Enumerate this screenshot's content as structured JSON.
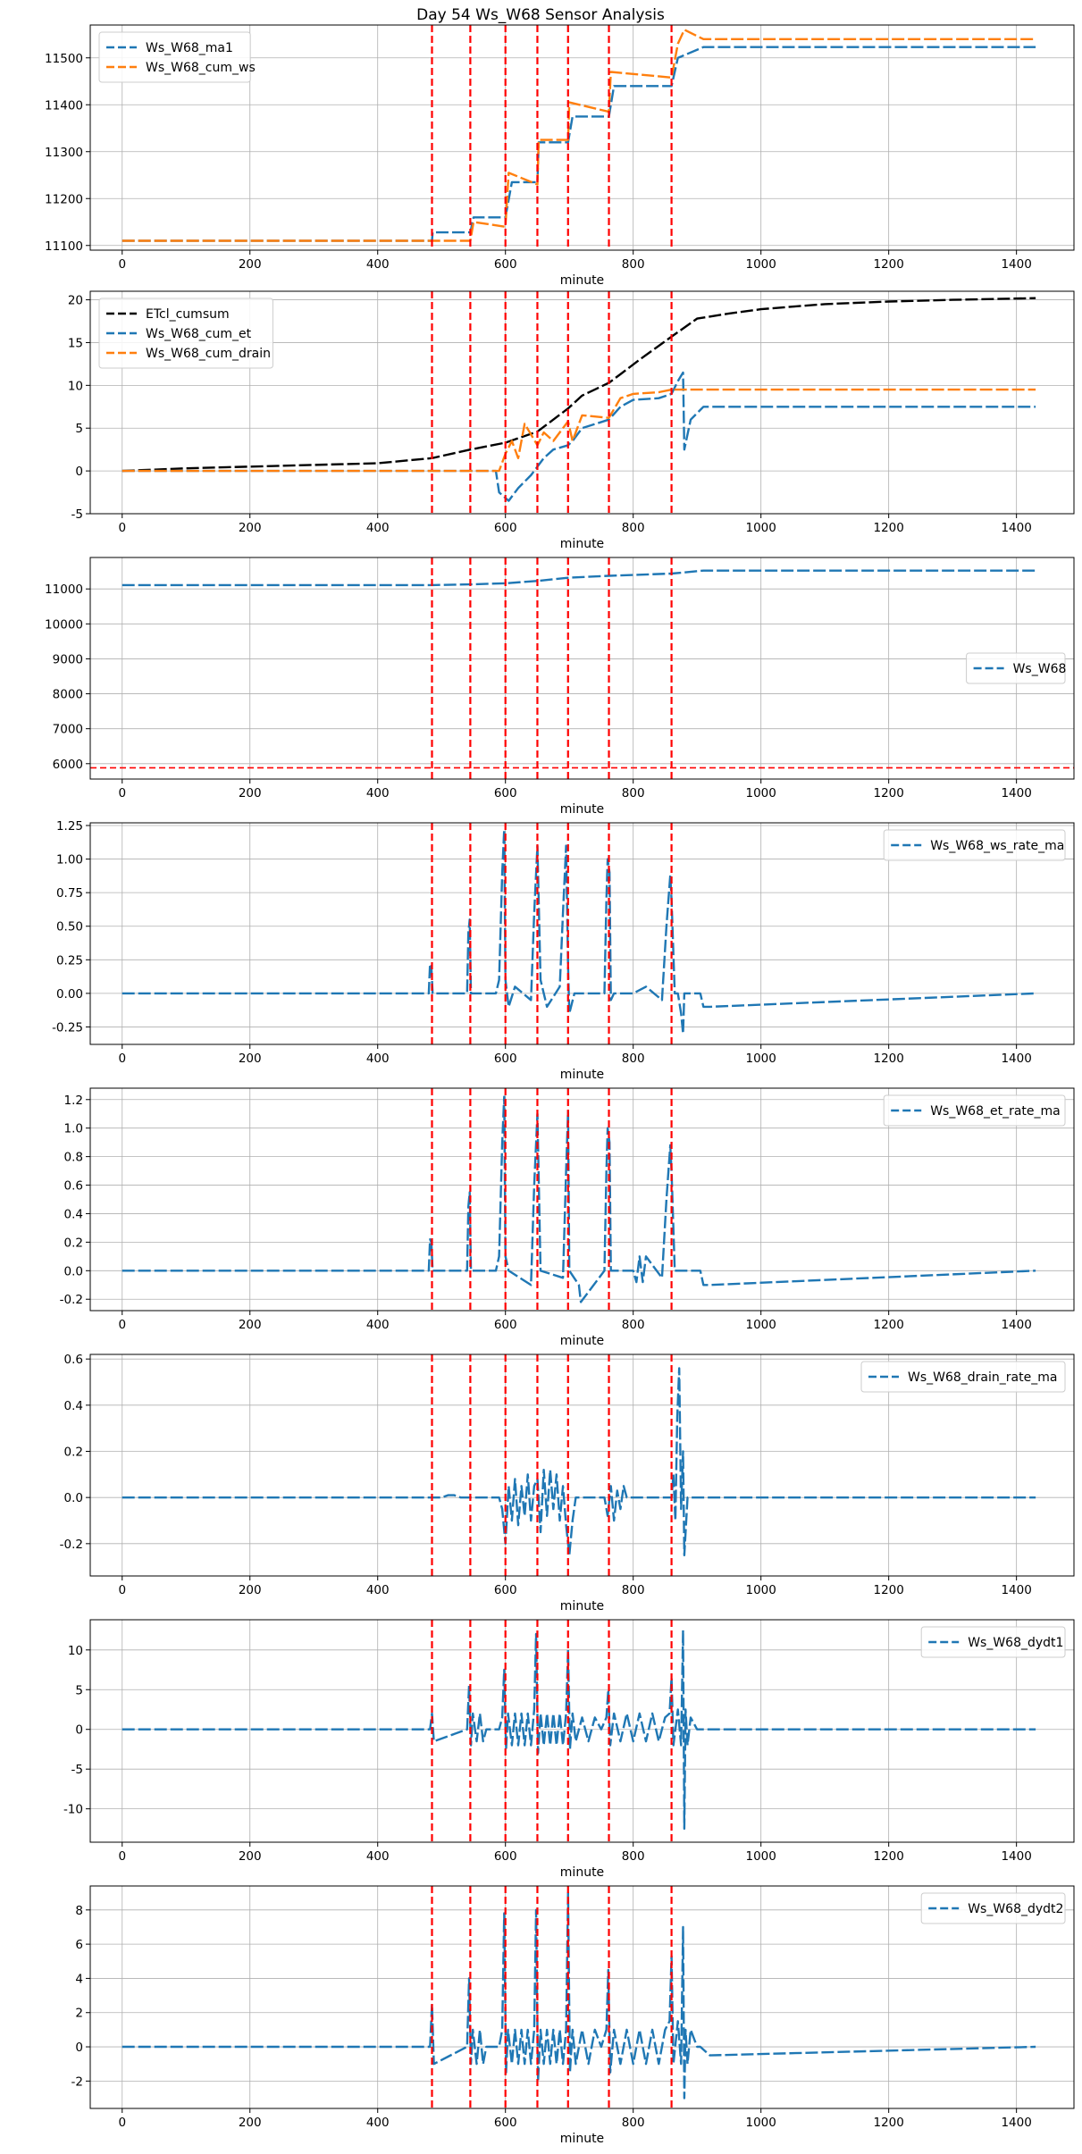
{
  "figure_title": "Day 54 Ws_W68 Sensor Analysis",
  "colors": {
    "blue": "#1f77b4",
    "orange": "#ff7f0e",
    "black": "#000000",
    "red": "#ff0000",
    "grid": "#b0b0b0"
  },
  "vlines": [
    485,
    545,
    600,
    650,
    698,
    762,
    860
  ],
  "chart_data": [
    {
      "type": "line",
      "xlabel": "minute",
      "xlim": [
        -50,
        1490
      ],
      "ylim": [
        11090,
        11570
      ],
      "yticks": [
        11100,
        11200,
        11300,
        11400,
        11500
      ],
      "ytick_labels": [
        "11100",
        "11200",
        "11300",
        "11400",
        "11500"
      ],
      "grid": true,
      "legend_position": "upper-left",
      "series": [
        {
          "name": "Ws_W68_ma1",
          "color": "#1f77b4",
          "style": "dashed",
          "x": [
            0,
            485,
            486,
            545,
            550,
            600,
            610,
            650,
            652,
            698,
            705,
            762,
            770,
            860,
            870,
            910,
            1430
          ],
          "y": [
            11110,
            11110,
            11128,
            11128,
            11160,
            11160,
            11235,
            11235,
            11320,
            11320,
            11375,
            11375,
            11440,
            11440,
            11500,
            11523,
            11523
          ]
        },
        {
          "name": "Ws_W68_cum_ws",
          "color": "#ff7f0e",
          "style": "dashed",
          "x": [
            0,
            485,
            545,
            550,
            600,
            605,
            650,
            652,
            698,
            700,
            762,
            765,
            860,
            870,
            880,
            910,
            1430
          ],
          "y": [
            11110,
            11110,
            11110,
            11150,
            11140,
            11255,
            11230,
            11325,
            11325,
            11405,
            11385,
            11470,
            11458,
            11530,
            11560,
            11540,
            11540
          ]
        }
      ]
    },
    {
      "type": "line",
      "xlabel": "minute",
      "xlim": [
        -50,
        1490
      ],
      "ylim": [
        -5,
        21
      ],
      "yticks": [
        -5,
        0,
        5,
        10,
        15,
        20
      ],
      "ytick_labels": [
        "-5",
        "0",
        "5",
        "10",
        "15",
        "20"
      ],
      "grid": true,
      "legend_position": "upper-left",
      "series": [
        {
          "name": "ETcl_cumsum",
          "color": "#000000",
          "style": "dashed",
          "x": [
            0,
            100,
            200,
            300,
            400,
            485,
            545,
            600,
            650,
            698,
            720,
            762,
            780,
            810,
            860,
            900,
            950,
            1000,
            1050,
            1100,
            1200,
            1300,
            1430
          ],
          "y": [
            0,
            0.3,
            0.5,
            0.7,
            0.9,
            1.5,
            2.5,
            3.3,
            4.6,
            7.3,
            8.8,
            10.3,
            11.3,
            13.0,
            15.7,
            17.8,
            18.4,
            18.9,
            19.2,
            19.5,
            19.8,
            20.0,
            20.2
          ]
        },
        {
          "name": "Ws_W68_cum_et",
          "color": "#1f77b4",
          "style": "dashed",
          "x": [
            0,
            485,
            545,
            585,
            590,
            605,
            620,
            640,
            650,
            660,
            675,
            698,
            705,
            720,
            762,
            780,
            800,
            840,
            860,
            870,
            878,
            880,
            890,
            910,
            1430
          ],
          "y": [
            0,
            0,
            0,
            0,
            -2.5,
            -3.5,
            -2.0,
            -0.5,
            0.5,
            1.5,
            2.5,
            3.0,
            3.5,
            5.0,
            6.0,
            7.5,
            8.3,
            8.5,
            9.0,
            10.5,
            11.5,
            2.5,
            6.0,
            7.5,
            7.5
          ]
        },
        {
          "name": "Ws_W68_cum_drain",
          "color": "#ff7f0e",
          "style": "dashed",
          "x": [
            0,
            485,
            545,
            590,
            600,
            610,
            620,
            630,
            650,
            660,
            675,
            698,
            705,
            720,
            762,
            780,
            800,
            840,
            860,
            870,
            900,
            1430
          ],
          "y": [
            0,
            0,
            0,
            0,
            2.0,
            3.5,
            1.5,
            5.5,
            3.0,
            4.5,
            3.5,
            5.8,
            3.5,
            6.5,
            6.2,
            8.5,
            9.0,
            9.2,
            9.5,
            9.5,
            9.5,
            9.5
          ]
        }
      ]
    },
    {
      "type": "line",
      "xlabel": "minute",
      "xlim": [
        -50,
        1490
      ],
      "ylim": [
        5560,
        11900
      ],
      "yticks": [
        6000,
        7000,
        8000,
        9000,
        10000,
        11000
      ],
      "ytick_labels": [
        "6000",
        "7000",
        "8000",
        "9000",
        "10000",
        "11000"
      ],
      "grid": true,
      "legend_position": "center-right",
      "hline": 5880,
      "series": [
        {
          "name": "Ws_W68",
          "color": "#1f77b4",
          "style": "dashed",
          "x": [
            0,
            485,
            545,
            600,
            650,
            698,
            762,
            860,
            910,
            1430
          ],
          "y": [
            11110,
            11110,
            11130,
            11160,
            11230,
            11320,
            11375,
            11440,
            11525,
            11525
          ]
        }
      ]
    },
    {
      "type": "line",
      "xlabel": "minute",
      "xlim": [
        -50,
        1490
      ],
      "ylim": [
        -0.38,
        1.27
      ],
      "yticks": [
        -0.25,
        0,
        0.25,
        0.5,
        0.75,
        1.0,
        1.25
      ],
      "ytick_labels": [
        "-0.25",
        "0.00",
        "0.25",
        "0.50",
        "0.75",
        "1.00",
        "1.25"
      ],
      "grid": true,
      "legend_position": "upper-right",
      "series": [
        {
          "name": "Ws_W68_ws_rate_ma",
          "color": "#1f77b4",
          "style": "dashed",
          "x": [
            0,
            480,
            482,
            484,
            486,
            540,
            542,
            544,
            546,
            585,
            590,
            595,
            598,
            600,
            605,
            615,
            640,
            645,
            650,
            655,
            665,
            685,
            690,
            695,
            698,
            700,
            708,
            755,
            758,
            760,
            763,
            765,
            770,
            800,
            820,
            845,
            852,
            858,
            860,
            865,
            870,
            875,
            878,
            880,
            885,
            890,
            905,
            910,
            920,
            1430
          ],
          "y": [
            0,
            0,
            0.22,
            0.2,
            0,
            0,
            0.45,
            0.55,
            0,
            0,
            0.1,
            0.9,
            1.22,
            0.1,
            -0.1,
            0.05,
            -0.05,
            0.6,
            1.1,
            0.1,
            -0.1,
            0.05,
            0.6,
            1.1,
            0.2,
            -0.15,
            0.0,
            0.0,
            0.7,
            1.0,
            0.9,
            -0.05,
            0.0,
            0.0,
            0.05,
            -0.05,
            0.5,
            0.88,
            0.7,
            0.0,
            0.0,
            -0.15,
            -0.3,
            0.0,
            0.0,
            0.0,
            0.0,
            -0.1,
            -0.1,
            0.0
          ]
        }
      ]
    },
    {
      "type": "line",
      "xlabel": "minute",
      "xlim": [
        -50,
        1490
      ],
      "ylim": [
        -0.28,
        1.28
      ],
      "yticks": [
        -0.2,
        0,
        0.2,
        0.4,
        0.6,
        0.8,
        1.0,
        1.2
      ],
      "ytick_labels": [
        "-0.2",
        "0.0",
        "0.2",
        "0.4",
        "0.6",
        "0.8",
        "1.0",
        "1.2"
      ],
      "grid": true,
      "legend_position": "upper-right",
      "series": [
        {
          "name": "Ws_W68_et_rate_ma",
          "color": "#1f77b4",
          "style": "dashed",
          "x": [
            0,
            480,
            482,
            484,
            486,
            540,
            542,
            544,
            546,
            585,
            590,
            595,
            598,
            600,
            605,
            640,
            645,
            650,
            655,
            690,
            695,
            698,
            700,
            715,
            718,
            755,
            758,
            760,
            763,
            765,
            800,
            805,
            810,
            815,
            820,
            845,
            852,
            858,
            860,
            865,
            905,
            910,
            920,
            1430
          ],
          "y": [
            0,
            0,
            0.22,
            0.2,
            0,
            0,
            0.45,
            0.55,
            0,
            0,
            0.1,
            0.9,
            1.22,
            0.1,
            0.0,
            -0.1,
            0.6,
            1.1,
            0.0,
            -0.05,
            0.7,
            1.12,
            0.0,
            -0.1,
            -0.22,
            0.0,
            0.7,
            1.0,
            0.9,
            0.0,
            0.0,
            -0.08,
            0.1,
            -0.08,
            0.1,
            -0.05,
            0.5,
            0.88,
            0.7,
            0.0,
            0.0,
            -0.1,
            -0.1,
            0.0
          ]
        }
      ]
    },
    {
      "type": "line",
      "xlabel": "minute",
      "xlim": [
        -50,
        1490
      ],
      "ylim": [
        -0.34,
        0.62
      ],
      "yticks": [
        -0.2,
        0,
        0.2,
        0.4,
        0.6
      ],
      "ytick_labels": [
        "-0.2",
        "0.0",
        "0.2",
        "0.4",
        "0.6"
      ],
      "grid": true,
      "legend_position": "upper-right",
      "series": [
        {
          "name": "Ws_W68_drain_rate_ma",
          "color": "#1f77b4",
          "style": "dashed",
          "x": [
            0,
            480,
            500,
            510,
            520,
            530,
            540,
            590,
            595,
            600,
            605,
            610,
            615,
            620,
            625,
            630,
            635,
            640,
            645,
            650,
            655,
            660,
            665,
            670,
            675,
            680,
            685,
            690,
            695,
            700,
            705,
            710,
            755,
            760,
            765,
            770,
            775,
            780,
            785,
            790,
            795,
            860,
            863,
            866,
            869,
            872,
            875,
            878,
            880,
            885,
            1430
          ],
          "y": [
            0,
            0,
            0,
            0.01,
            0.01,
            0,
            0,
            0,
            -0.05,
            -0.2,
            0.05,
            -0.1,
            0.08,
            -0.12,
            0.05,
            -0.08,
            0.1,
            -0.1,
            0.05,
            0.08,
            -0.15,
            0.12,
            -0.08,
            0.12,
            -0.05,
            0.1,
            -0.1,
            0.05,
            -0.12,
            -0.25,
            -0.1,
            0.0,
            0.0,
            -0.08,
            0.05,
            -0.1,
            0.03,
            -0.05,
            0.05,
            0.0,
            0.0,
            0.0,
            0.1,
            -0.1,
            0.35,
            0.56,
            -0.05,
            0.2,
            -0.25,
            0.0,
            0.0
          ]
        }
      ]
    },
    {
      "type": "line",
      "xlabel": "minute",
      "xlim": [
        -50,
        1490
      ],
      "ylim": [
        -14.2,
        13.8
      ],
      "yticks": [
        -10,
        -5,
        0,
        5,
        10
      ],
      "ytick_labels": [
        "-10",
        "-5",
        "0",
        "5",
        "10"
      ],
      "grid": true,
      "legend_position": "upper-right",
      "series": [
        {
          "name": "Ws_W68_dydt1",
          "color": "#1f77b4",
          "style": "dashed",
          "x": [
            0,
            482,
            485,
            488,
            540,
            543,
            546,
            549,
            555,
            560,
            565,
            570,
            590,
            595,
            598,
            601,
            604,
            610,
            615,
            620,
            625,
            630,
            635,
            640,
            645,
            648,
            651,
            655,
            660,
            665,
            670,
            675,
            680,
            685,
            690,
            695,
            698,
            701,
            705,
            710,
            720,
            730,
            740,
            750,
            758,
            761,
            764,
            770,
            780,
            790,
            800,
            810,
            820,
            830,
            840,
            850,
            857,
            860,
            863,
            870,
            875,
            878,
            880,
            882,
            885,
            890,
            900,
            905,
            1430
          ],
          "y": [
            0,
            0,
            2.0,
            -1.5,
            0,
            5.5,
            -2.0,
            2.0,
            -1.5,
            2.0,
            -1.5,
            0,
            0,
            1.5,
            7.5,
            -2.5,
            2.0,
            -2.0,
            2.0,
            -2.0,
            2.0,
            -2.0,
            2.0,
            -2.0,
            2.5,
            12.0,
            -3.0,
            2.0,
            -2.0,
            2.0,
            -2.0,
            2.0,
            -2.0,
            2.0,
            -2.0,
            2.0,
            10.0,
            -2.5,
            2.0,
            -1.5,
            1.5,
            -1.5,
            1.5,
            0,
            1.5,
            5.0,
            -2.0,
            2.0,
            -1.5,
            2.0,
            -1.5,
            2.0,
            -1.5,
            2.0,
            -1.5,
            1.5,
            2.0,
            6.5,
            -2.0,
            2.5,
            -2.0,
            12.5,
            -12.5,
            2.5,
            -2.0,
            1.5,
            0,
            0,
            0
          ]
        }
      ]
    },
    {
      "type": "line",
      "xlabel": "minute",
      "xlim": [
        -50,
        1490
      ],
      "ylim": [
        -3.6,
        9.4
      ],
      "yticks": [
        -2,
        0,
        2,
        4,
        6,
        8
      ],
      "ytick_labels": [
        "-2",
        "0",
        "2",
        "4",
        "6",
        "8"
      ],
      "grid": true,
      "legend_position": "upper-right",
      "series": [
        {
          "name": "Ws_W68_dydt2",
          "color": "#1f77b4",
          "style": "dashed",
          "x": [
            0,
            482,
            485,
            488,
            540,
            543,
            546,
            549,
            555,
            560,
            565,
            570,
            590,
            595,
            598,
            601,
            604,
            610,
            615,
            620,
            625,
            630,
            635,
            640,
            645,
            648,
            651,
            655,
            660,
            665,
            670,
            675,
            680,
            685,
            690,
            695,
            698,
            701,
            705,
            710,
            720,
            730,
            740,
            750,
            758,
            761,
            764,
            770,
            780,
            790,
            800,
            810,
            820,
            830,
            840,
            850,
            857,
            860,
            863,
            870,
            875,
            878,
            880,
            882,
            885,
            890,
            900,
            905,
            920,
            1430
          ],
          "y": [
            0,
            0,
            2.5,
            -1.0,
            0,
            4.0,
            -1.0,
            1.0,
            -1.0,
            1.0,
            -1.0,
            0,
            0,
            1.0,
            7.8,
            -1.5,
            1.0,
            -1.0,
            1.0,
            -1.0,
            1.0,
            -1.0,
            1.0,
            -1.0,
            1.0,
            8.0,
            -2.0,
            1.0,
            -1.0,
            1.0,
            -1.0,
            1.0,
            -1.0,
            1.0,
            -1.0,
            1.0,
            9.0,
            -1.5,
            1.0,
            -1.0,
            1.0,
            -1.0,
            1.0,
            0,
            1.0,
            4.5,
            -1.5,
            1.0,
            -1.0,
            1.0,
            -1.0,
            1.0,
            -1.0,
            1.0,
            -1.0,
            1.0,
            1.5,
            5.3,
            -1.0,
            1.5,
            -1.0,
            7.0,
            -3.0,
            1.0,
            -1.0,
            1.0,
            0,
            0,
            -0.5,
            0
          ]
        }
      ]
    }
  ],
  "xticks": [
    0,
    200,
    400,
    600,
    800,
    1000,
    1200,
    1400
  ],
  "xtick_labels": [
    "0",
    "200",
    "400",
    "600",
    "800",
    "1000",
    "1200",
    "1400"
  ]
}
